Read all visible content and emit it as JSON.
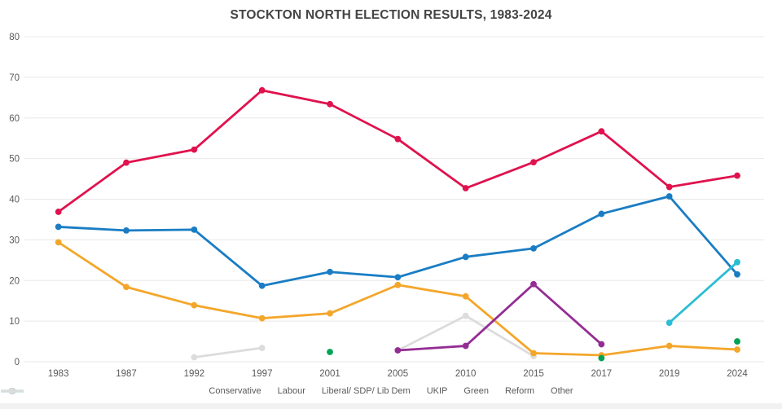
{
  "chart_data": {
    "type": "line",
    "title": "STOCKTON NORTH ELECTION RESULTS, 1983-2024",
    "xlabel": "",
    "ylabel": "",
    "ylim": [
      0,
      80
    ],
    "y_ticks": [
      0,
      10,
      20,
      30,
      40,
      50,
      60,
      70,
      80
    ],
    "grid": true,
    "legend_position": "bottom",
    "categories": [
      "1983",
      "1987",
      "1992",
      "1997",
      "2001",
      "2005",
      "2010",
      "2015",
      "2017",
      "2019",
      "2024"
    ],
    "series": [
      {
        "name": "Conservative",
        "color": "#1a7dc4",
        "marker_only": false,
        "values": [
          33.2,
          32.3,
          32.5,
          18.7,
          22.1,
          20.8,
          25.8,
          27.9,
          36.4,
          40.7,
          21.5
        ]
      },
      {
        "name": "Labour",
        "color": "#e0124e",
        "marker_only": false,
        "values": [
          36.9,
          49.0,
          52.2,
          66.8,
          63.4,
          54.8,
          42.7,
          49.1,
          56.7,
          43.0,
          45.8
        ]
      },
      {
        "name": "Liberal/ SDP/ Lib Dem",
        "color": "#f4a62a",
        "marker_only": false,
        "values": [
          29.4,
          18.4,
          13.9,
          10.7,
          11.9,
          18.9,
          16.1,
          2.1,
          1.6,
          3.9,
          3.0
        ]
      },
      {
        "name": "UKIP",
        "color": "#942d93",
        "marker_only": false,
        "values": [
          null,
          null,
          null,
          null,
          null,
          2.8,
          3.9,
          19.1,
          4.3,
          null,
          null
        ]
      },
      {
        "name": "Green",
        "color": "#00a356",
        "marker_only": true,
        "values": [
          null,
          null,
          null,
          null,
          2.4,
          null,
          null,
          null,
          0.9,
          null,
          5.0
        ]
      },
      {
        "name": "Reform",
        "color": "#2abdd3",
        "marker_only": false,
        "values": [
          null,
          null,
          null,
          null,
          null,
          null,
          null,
          null,
          null,
          9.6,
          24.5
        ]
      },
      {
        "name": "Other",
        "color": "#dcdcdc",
        "marker_only": false,
        "values": [
          null,
          null,
          1.1,
          3.4,
          null,
          2.8,
          11.3,
          1.4,
          null,
          null,
          null
        ]
      }
    ],
    "draw_order": [
      "Other",
      "Conservative",
      "Labour",
      "Liberal/ SDP/ Lib Dem",
      "UKIP",
      "Green",
      "Reform"
    ]
  },
  "style": {
    "axis_text_color": "#595959",
    "gridline_color": "#e8e8e8",
    "title_color": "#444444"
  }
}
